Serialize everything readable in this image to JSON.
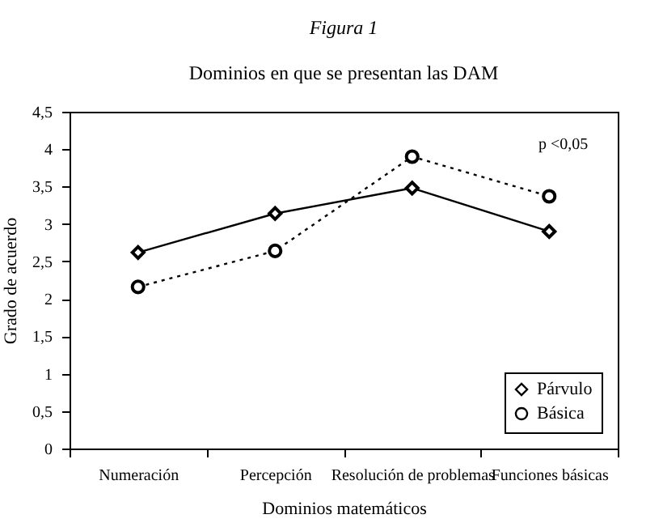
{
  "chart_data": {
    "type": "line",
    "title": "Figura 1",
    "subtitle": "Dominios en que se presentan las DAM",
    "xlabel": "Dominios matemáticos",
    "ylabel": "Grado de acuerdo",
    "categories": [
      "Numeración",
      "Percepción",
      "Resolución de problemas",
      "Funciones básicas"
    ],
    "series": [
      {
        "name": "Párvulo",
        "color": "#000000",
        "marker": "diamond",
        "line_style": "solid",
        "values": [
          2.62,
          3.14,
          3.48,
          2.9
        ]
      },
      {
        "name": "Básica",
        "color": "#000000",
        "marker": "circle",
        "line_style": "dotted",
        "values": [
          2.16,
          2.64,
          3.9,
          3.37
        ]
      }
    ],
    "ylim": [
      0,
      4.5
    ],
    "yticks": [
      0,
      {
        "value": 0.5,
        "label": "0,5"
      },
      1,
      {
        "value": 1.5,
        "label": "1,5"
      },
      2,
      {
        "value": 2.5,
        "label": "2,5"
      },
      3,
      {
        "value": 3.5,
        "label": "3,5"
      },
      4,
      {
        "value": 4.5,
        "label": "4,5"
      }
    ],
    "annotations": [
      "p <0,05"
    ],
    "grid": false,
    "legend": "bottom right"
  }
}
